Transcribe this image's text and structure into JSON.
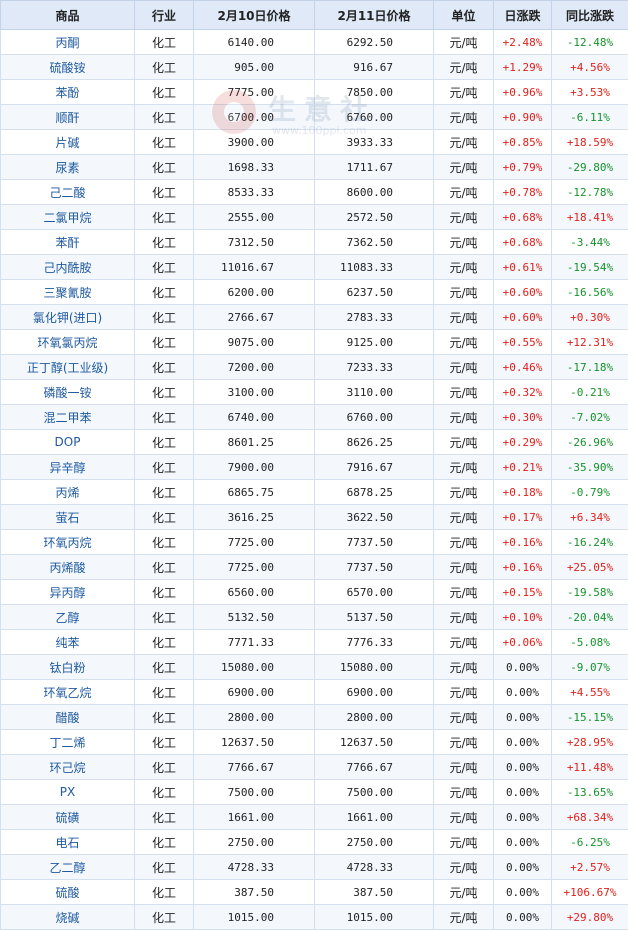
{
  "headers": [
    "商品",
    "行业",
    "2月10日价格",
    "2月11日价格",
    "单位",
    "日涨跌",
    "同比涨跌"
  ],
  "watermark": {
    "name": "生意社",
    "url": "www.100ppi.com"
  },
  "rows": [
    [
      "丙酮",
      "化工",
      "6140.00",
      "6292.50",
      "元/吨",
      "+2.48%",
      "-12.48%"
    ],
    [
      "硫酸铵",
      "化工",
      "905.00",
      "916.67",
      "元/吨",
      "+1.29%",
      "+4.56%"
    ],
    [
      "苯酚",
      "化工",
      "7775.00",
      "7850.00",
      "元/吨",
      "+0.96%",
      "+3.53%"
    ],
    [
      "顺酐",
      "化工",
      "6700.00",
      "6760.00",
      "元/吨",
      "+0.90%",
      "-6.11%"
    ],
    [
      "片碱",
      "化工",
      "3900.00",
      "3933.33",
      "元/吨",
      "+0.85%",
      "+18.59%"
    ],
    [
      "尿素",
      "化工",
      "1698.33",
      "1711.67",
      "元/吨",
      "+0.79%",
      "-29.80%"
    ],
    [
      "己二酸",
      "化工",
      "8533.33",
      "8600.00",
      "元/吨",
      "+0.78%",
      "-12.78%"
    ],
    [
      "二氯甲烷",
      "化工",
      "2555.00",
      "2572.50",
      "元/吨",
      "+0.68%",
      "+18.41%"
    ],
    [
      "苯酐",
      "化工",
      "7312.50",
      "7362.50",
      "元/吨",
      "+0.68%",
      "-3.44%"
    ],
    [
      "己内酰胺",
      "化工",
      "11016.67",
      "11083.33",
      "元/吨",
      "+0.61%",
      "-19.54%"
    ],
    [
      "三聚氰胺",
      "化工",
      "6200.00",
      "6237.50",
      "元/吨",
      "+0.60%",
      "-16.56%"
    ],
    [
      "氯化钾(进口)",
      "化工",
      "2766.67",
      "2783.33",
      "元/吨",
      "+0.60%",
      "+0.30%"
    ],
    [
      "环氧氯丙烷",
      "化工",
      "9075.00",
      "9125.00",
      "元/吨",
      "+0.55%",
      "+12.31%"
    ],
    [
      "正丁醇(工业级)",
      "化工",
      "7200.00",
      "7233.33",
      "元/吨",
      "+0.46%",
      "-17.18%"
    ],
    [
      "磷酸一铵",
      "化工",
      "3100.00",
      "3110.00",
      "元/吨",
      "+0.32%",
      "-0.21%"
    ],
    [
      "混二甲苯",
      "化工",
      "6740.00",
      "6760.00",
      "元/吨",
      "+0.30%",
      "-7.02%"
    ],
    [
      "DOP",
      "化工",
      "8601.25",
      "8626.25",
      "元/吨",
      "+0.29%",
      "-26.96%"
    ],
    [
      "异辛醇",
      "化工",
      "7900.00",
      "7916.67",
      "元/吨",
      "+0.21%",
      "-35.90%"
    ],
    [
      "丙烯",
      "化工",
      "6865.75",
      "6878.25",
      "元/吨",
      "+0.18%",
      "-0.79%"
    ],
    [
      "萤石",
      "化工",
      "3616.25",
      "3622.50",
      "元/吨",
      "+0.17%",
      "+6.34%"
    ],
    [
      "环氧丙烷",
      "化工",
      "7725.00",
      "7737.50",
      "元/吨",
      "+0.16%",
      "-16.24%"
    ],
    [
      "丙烯酸",
      "化工",
      "7725.00",
      "7737.50",
      "元/吨",
      "+0.16%",
      "+25.05%"
    ],
    [
      "异丙醇",
      "化工",
      "6560.00",
      "6570.00",
      "元/吨",
      "+0.15%",
      "-19.58%"
    ],
    [
      "乙醇",
      "化工",
      "5132.50",
      "5137.50",
      "元/吨",
      "+0.10%",
      "-20.04%"
    ],
    [
      "纯苯",
      "化工",
      "7771.33",
      "7776.33",
      "元/吨",
      "+0.06%",
      "-5.08%"
    ],
    [
      "钛白粉",
      "化工",
      "15080.00",
      "15080.00",
      "元/吨",
      "0.00%",
      "-9.07%"
    ],
    [
      "环氧乙烷",
      "化工",
      "6900.00",
      "6900.00",
      "元/吨",
      "0.00%",
      "+4.55%"
    ],
    [
      "醋酸",
      "化工",
      "2800.00",
      "2800.00",
      "元/吨",
      "0.00%",
      "-15.15%"
    ],
    [
      "丁二烯",
      "化工",
      "12637.50",
      "12637.50",
      "元/吨",
      "0.00%",
      "+28.95%"
    ],
    [
      "环己烷",
      "化工",
      "7766.67",
      "7766.67",
      "元/吨",
      "0.00%",
      "+11.48%"
    ],
    [
      "PX",
      "化工",
      "7500.00",
      "7500.00",
      "元/吨",
      "0.00%",
      "-13.65%"
    ],
    [
      "硫磺",
      "化工",
      "1661.00",
      "1661.00",
      "元/吨",
      "0.00%",
      "+68.34%"
    ],
    [
      "电石",
      "化工",
      "2750.00",
      "2750.00",
      "元/吨",
      "0.00%",
      "-6.25%"
    ],
    [
      "乙二醇",
      "化工",
      "4728.33",
      "4728.33",
      "元/吨",
      "0.00%",
      "+2.57%"
    ],
    [
      "硫酸",
      "化工",
      "387.50",
      "387.50",
      "元/吨",
      "0.00%",
      "+106.67%"
    ],
    [
      "烧碱",
      "化工",
      "1015.00",
      "1015.00",
      "元/吨",
      "0.00%",
      "+29.80%"
    ]
  ]
}
